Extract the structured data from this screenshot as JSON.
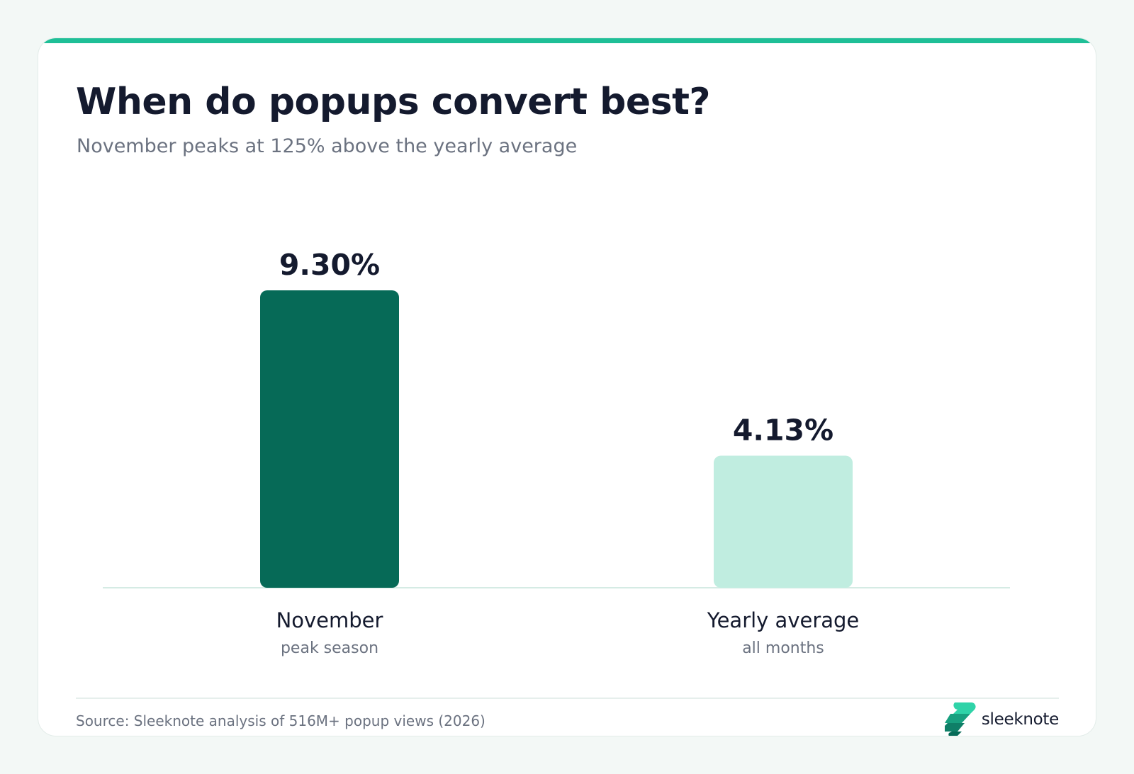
{
  "header": {
    "title": "When do popups convert best?",
    "subtitle": "November peaks at 125% above the yearly average"
  },
  "chart_data": {
    "type": "bar",
    "categories": [
      "November",
      "Yearly average"
    ],
    "category_subtitles": [
      "peak season",
      "all months"
    ],
    "values": [
      9.3,
      4.13
    ],
    "value_labels": [
      "9.30%",
      "4.13%"
    ],
    "bar_colors": [
      "#066a57",
      "#c0ede0"
    ],
    "title": "When do popups convert best?",
    "subtitle": "November peaks at 125% above the yearly average",
    "xlabel": "",
    "ylabel": "",
    "ylim": [
      0,
      9.3
    ],
    "grid": false,
    "legend": "none"
  },
  "footer": {
    "source": "Source: Sleeknote analysis of 516M+ popup views (2026)",
    "brand": "sleeknote"
  },
  "colors": {
    "accent": "#1fbf97",
    "dark_green": "#066a57",
    "light_green": "#c0ede0",
    "text_dark": "#141a2e",
    "text_muted": "#6b7280"
  }
}
